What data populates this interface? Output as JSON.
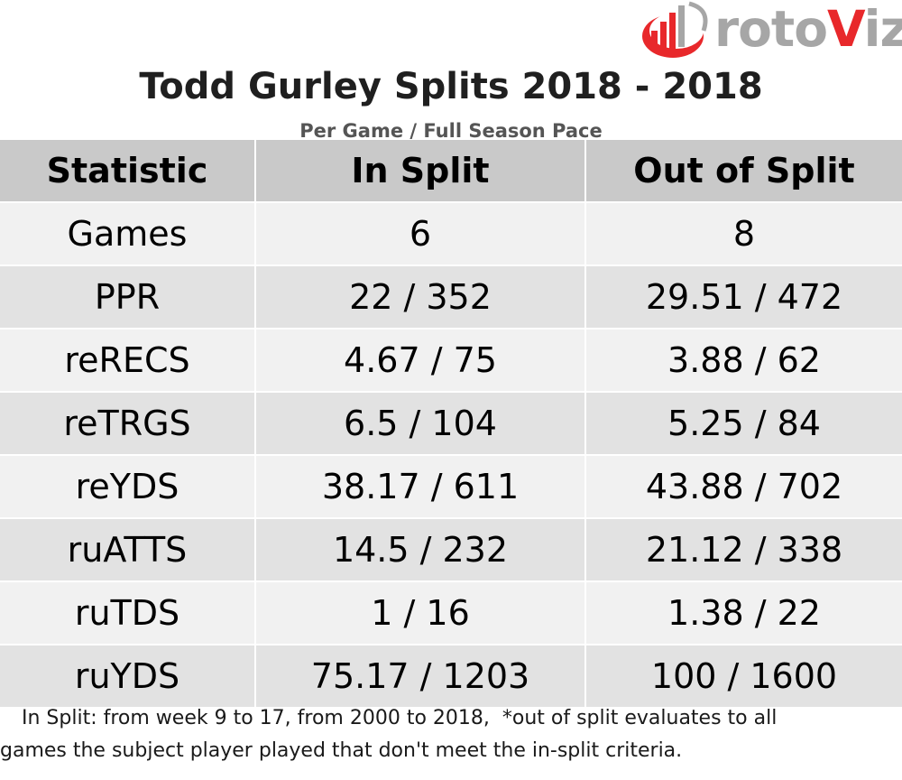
{
  "logo": {
    "text_part1": "roto",
    "text_part2": "V",
    "text_part3": "iz",
    "colors": {
      "red": "#e8282b",
      "gray": "#a6a6a6"
    }
  },
  "title": "Todd Gurley Splits 2018 - 2018",
  "subtitle": "Per Game / Full Season Pace",
  "table": {
    "headers": [
      "Statistic",
      "In Split",
      "Out of Split"
    ],
    "rows": [
      [
        "Games",
        "6",
        "8"
      ],
      [
        "PPR",
        "22 / 352",
        "29.51 / 472"
      ],
      [
        "reRECS",
        "4.67 / 75",
        "3.88 / 62"
      ],
      [
        "reTRGS",
        "6.5 / 104",
        "5.25 / 84"
      ],
      [
        "reYDS",
        "38.17 / 611",
        "43.88 / 702"
      ],
      [
        "ruATTS",
        "14.5 / 232",
        "21.12 / 338"
      ],
      [
        "ruTDS",
        "1 / 16",
        "1.38 / 22"
      ],
      [
        "ruYDS",
        "75.17 / 1203",
        "100 / 1600"
      ]
    ]
  },
  "footnote": {
    "line1": "In Split: from week 9 to 17, from 2000 to 2018,  *out of split evaluates to all",
    "line2": "games the subject player played that don't meet the in-split criteria."
  }
}
